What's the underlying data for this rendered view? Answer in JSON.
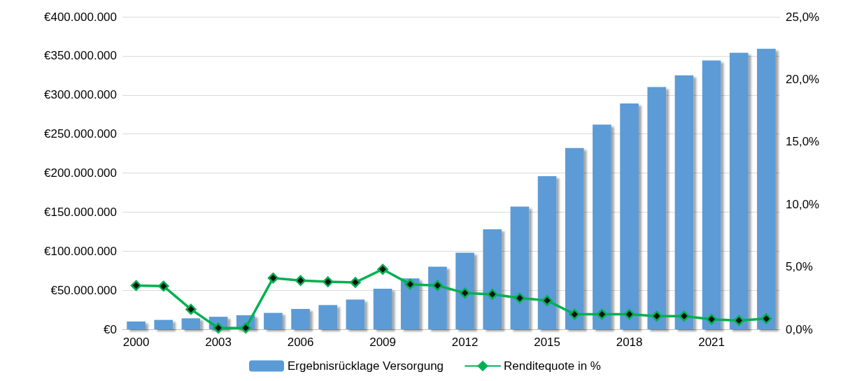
{
  "chart_data": {
    "type": "bar",
    "categories": [
      "2000",
      null,
      null,
      "2003",
      null,
      null,
      "2006",
      null,
      null,
      "2009",
      null,
      null,
      "2012",
      null,
      null,
      "2015",
      null,
      null,
      "2018",
      null,
      null,
      "2021",
      null,
      null
    ],
    "series": [
      {
        "name": "Ergebnisrücklage Versorgung",
        "color": "#5b9bd5",
        "values": [
          10000000,
          12000000,
          14000000,
          16000000,
          18000000,
          21000000,
          26000000,
          31000000,
          38000000,
          52000000,
          65000000,
          80000000,
          98000000,
          128000000,
          157000000,
          196000000,
          232000000,
          262000000,
          289000000,
          310000000,
          325000000,
          344000000,
          354000000,
          359000000
        ]
      },
      {
        "name": "Renditequote in %",
        "type": "line",
        "axis": "y2",
        "color": "#00b050",
        "marker": "diamond",
        "values": [
          3.5,
          3.45,
          1.6,
          0.1,
          0.1,
          4.1,
          3.9,
          3.8,
          3.75,
          4.8,
          3.6,
          3.5,
          2.9,
          2.8,
          2.5,
          2.3,
          1.2,
          1.2,
          1.2,
          1.05,
          1.05,
          0.8,
          0.7,
          0.85
        ]
      }
    ],
    "ylim": [
      0,
      400000000
    ],
    "yticks": [
      {
        "value": 0,
        "label": "€0"
      },
      {
        "value": 50000000,
        "label": "€50.000.000"
      },
      {
        "value": 100000000,
        "label": "€100.000.000"
      },
      {
        "value": 150000000,
        "label": "€150.000.000"
      },
      {
        "value": 200000000,
        "label": "€200.000.000"
      },
      {
        "value": 250000000,
        "label": "€250.000.000"
      },
      {
        "value": 300000000,
        "label": "€300.000.000"
      },
      {
        "value": 350000000,
        "label": "€350.000.000"
      },
      {
        "value": 400000000,
        "label": "€400.000.000"
      }
    ],
    "y2lim": [
      0,
      25
    ],
    "y2ticks": [
      {
        "value": 0,
        "label": "0,0%"
      },
      {
        "value": 5,
        "label": "5,0%"
      },
      {
        "value": 10,
        "label": "10,0%"
      },
      {
        "value": 15,
        "label": "15,0%"
      },
      {
        "value": 20,
        "label": "20,0%"
      },
      {
        "value": 25,
        "label": "25,0%"
      }
    ],
    "grid": "y",
    "legend": "bottom"
  }
}
